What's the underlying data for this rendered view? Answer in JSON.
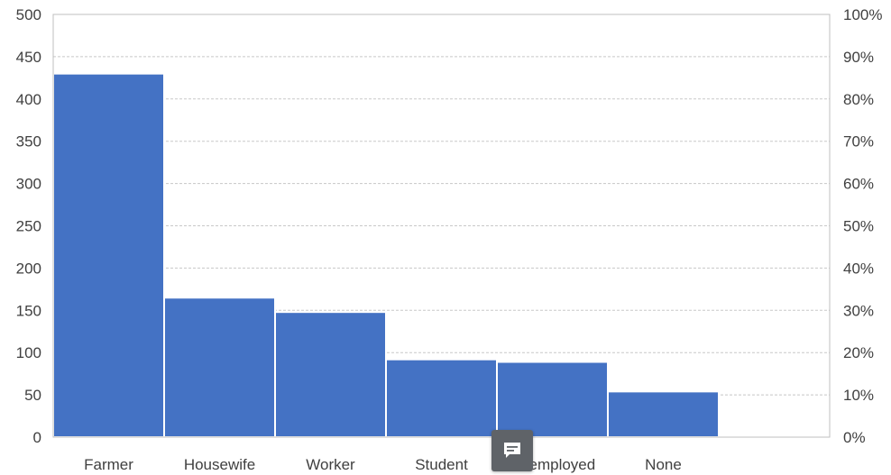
{
  "chart_data": {
    "type": "bar",
    "categories": [
      "Farmer",
      "Housewife",
      "Worker",
      "Student",
      "Unemployed",
      "None"
    ],
    "values": [
      430,
      165,
      148,
      92,
      89,
      54
    ],
    "ylim": [
      0,
      500
    ],
    "y_ticks": [
      "0",
      "50",
      "100",
      "150",
      "200",
      "250",
      "300",
      "350",
      "400",
      "450",
      "500"
    ],
    "y2_ticks": [
      "0%",
      "10%",
      "20%",
      "30%",
      "40%",
      "50%",
      "60%",
      "70%",
      "80%",
      "90%",
      "100%"
    ],
    "grid": true,
    "bar_color": "#4472c4"
  },
  "overlay": {
    "icon": "comment-icon"
  }
}
